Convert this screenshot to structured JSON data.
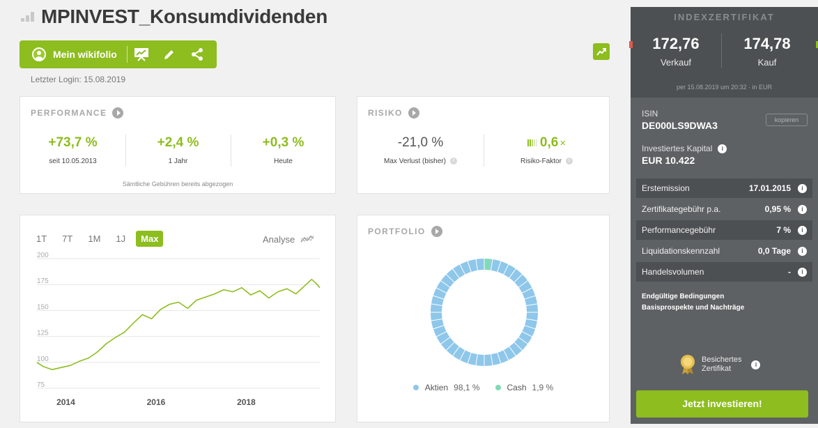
{
  "page": {
    "title": "MPINVEST_Konsumdividenden",
    "last_login": "Letzter Login: 15.08.2019"
  },
  "toolbar": {
    "user_label": "Mein wikifolio",
    "icons": [
      "user-icon",
      "presentation-icon",
      "pencil-icon",
      "share-icon"
    ]
  },
  "performance": {
    "heading": "PERFORMANCE",
    "stats": [
      {
        "value": "+73,7 %",
        "label": "seit 10.05.2013"
      },
      {
        "value": "+2,4 %",
        "label": "1 Jahr"
      },
      {
        "value": "+0,3 %",
        "label": "Heute"
      }
    ],
    "note": "Sämtliche Gebühren bereits abgezogen"
  },
  "risk": {
    "heading": "RISIKO",
    "max_loss": {
      "value": "-21,0 %",
      "label": "Max Verlust (bisher)"
    },
    "risk_factor": {
      "value": "0,6",
      "suffix": "×",
      "label": "Risiko-Faktor"
    },
    "info_glyph": "i"
  },
  "chart": {
    "tabs": [
      "1T",
      "7T",
      "1M",
      "1J",
      "Max"
    ],
    "active_tab": "Max",
    "analyse_label": "Analyse",
    "chart_data": {
      "type": "line",
      "x_ticks": [
        "2014",
        "2016",
        "2018"
      ],
      "y_ticks": [
        200,
        175,
        150,
        125,
        100,
        75
      ],
      "ylim": [
        75,
        200
      ],
      "xlim": [
        2013.36,
        2019.63
      ],
      "grid": true,
      "series": [
        {
          "color": "#8dbd1e",
          "points": [
            [
              2013.36,
              100
            ],
            [
              2013.5,
              96
            ],
            [
              2013.7,
              93
            ],
            [
              2013.9,
              95
            ],
            [
              2014.1,
              97
            ],
            [
              2014.3,
              101
            ],
            [
              2014.5,
              104
            ],
            [
              2014.7,
              110
            ],
            [
              2014.9,
              118
            ],
            [
              2015.1,
              124
            ],
            [
              2015.3,
              129
            ],
            [
              2015.5,
              138
            ],
            [
              2015.7,
              146
            ],
            [
              2015.9,
              142
            ],
            [
              2016.1,
              151
            ],
            [
              2016.3,
              156
            ],
            [
              2016.5,
              158
            ],
            [
              2016.7,
              152
            ],
            [
              2016.9,
              160
            ],
            [
              2017.1,
              163
            ],
            [
              2017.3,
              166
            ],
            [
              2017.5,
              170
            ],
            [
              2017.7,
              168
            ],
            [
              2017.9,
              172
            ],
            [
              2018.1,
              165
            ],
            [
              2018.3,
              169
            ],
            [
              2018.5,
              162
            ],
            [
              2018.7,
              168
            ],
            [
              2018.9,
              171
            ],
            [
              2019.1,
              166
            ],
            [
              2019.3,
              174
            ],
            [
              2019.45,
              180
            ],
            [
              2019.55,
              176
            ],
            [
              2019.63,
              172
            ]
          ]
        }
      ]
    }
  },
  "portfolio": {
    "heading": "PORTFOLIO",
    "chart_data": {
      "type": "pie",
      "slices": [
        {
          "label": "Aktien",
          "value": 98.1,
          "color": "#8ec7ea"
        },
        {
          "label": "Cash",
          "value": 1.9,
          "color": "#7fdbb6"
        }
      ]
    },
    "legend": [
      {
        "label": "Aktien",
        "pct": "98,1 %",
        "color": "#8ec7ea"
      },
      {
        "label": "Cash",
        "pct": "1,9 %",
        "color": "#7fdbb6"
      }
    ]
  },
  "sidebar": {
    "heading": "INDEXZERTIFIKAT",
    "sell": {
      "value": "172,76",
      "label": "Verkauf"
    },
    "buy": {
      "value": "174,78",
      "label": "Kauf"
    },
    "timestamp": "per 15.08.2019 um 20:32 · in EUR",
    "isin_label": "ISIN",
    "isin": "DE000LS9DWA3",
    "copy_label": "kopieren",
    "capital_label": "Investiertes Kapital",
    "capital": "EUR 10.422",
    "info_glyph": "i",
    "rows": [
      {
        "key": "Erstemission",
        "value": "17.01.2015"
      },
      {
        "key": "Zertifikategebühr p.a.",
        "value": "0,95 %"
      },
      {
        "key": "Performancegebühr",
        "value": "7 %"
      },
      {
        "key": "Liquidationskennzahl",
        "value": "0,0 Tage"
      },
      {
        "key": "Handelsvolumen",
        "value": "-"
      }
    ],
    "links": [
      "Endgültige Bedingungen",
      "Basisprospekte und Nachträge"
    ],
    "secured_label": "Besichertes Zertifikat",
    "secured_line1": "Besichertes",
    "secured_line2": "Zertifikat",
    "invest_label": "Jetzt investieren!"
  },
  "colors": {
    "accent": "#8dbd1e",
    "sidebar": "#5e6163",
    "sidebar_dark": "#4d5052"
  }
}
